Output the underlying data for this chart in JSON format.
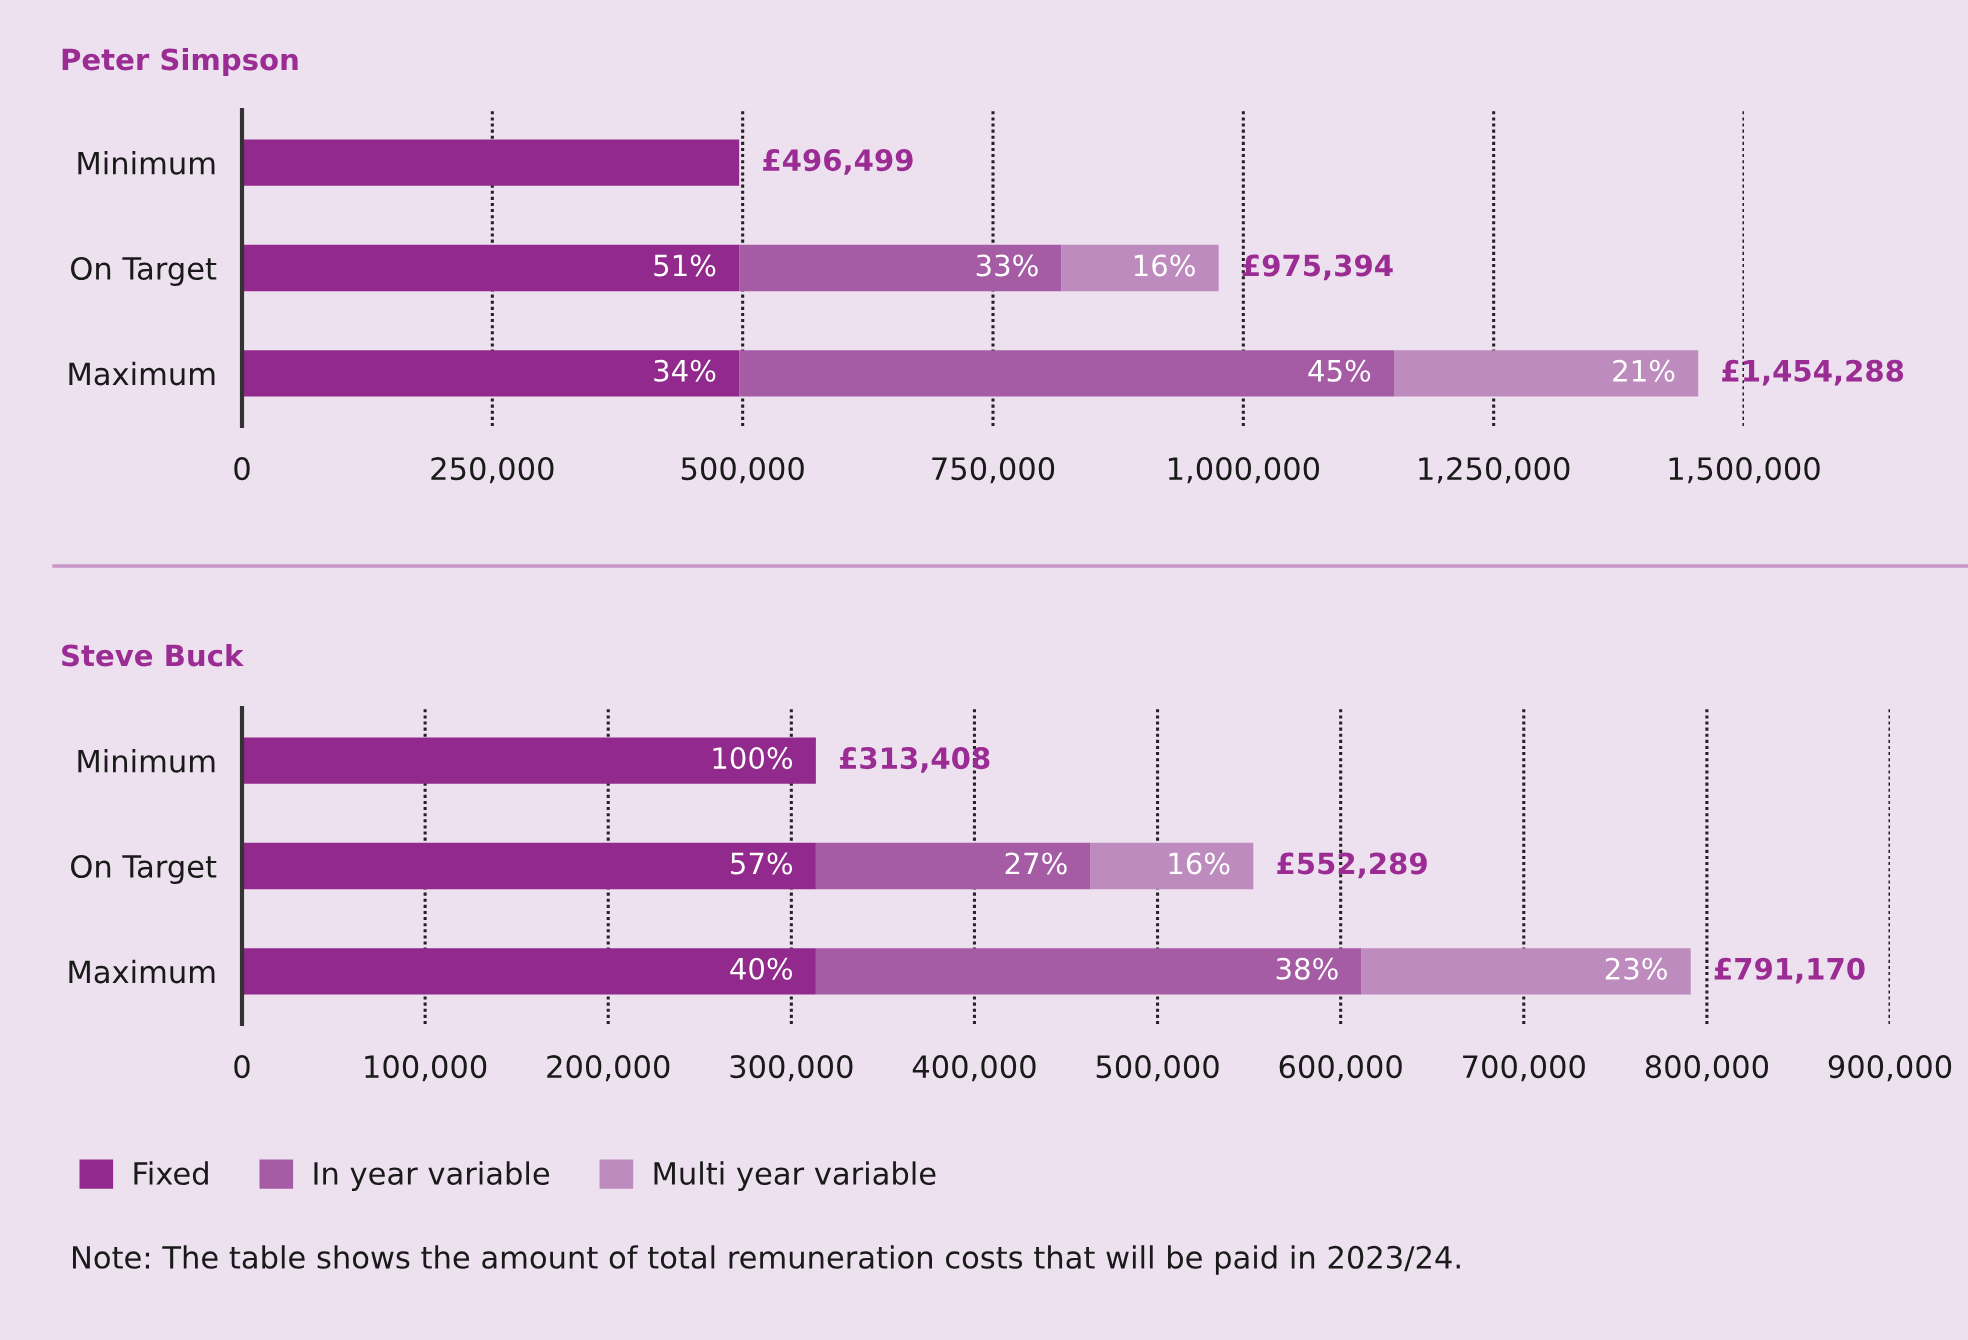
{
  "chart_data": [
    {
      "type": "bar",
      "orientation": "horizontal",
      "stacked": true,
      "title": "Peter Simpson",
      "categories": [
        "Minimum",
        "On Target",
        "Maximum"
      ],
      "series": [
        {
          "color": "#92298c",
          "values": [
            496499,
            496499,
            496499
          ]
        },
        {
          "color": "#a55ca5",
          "values": [
            null,
            322000,
            654000
          ]
        },
        {
          "color": "#bd8bbd",
          "values": [
            null,
            156895,
            303789
          ]
        }
      ],
      "totals": [
        "£496,499",
        "£975,394",
        "£1,454,288"
      ],
      "annotations": [
        {
          "text": "51%",
          "x": 496499,
          "y": "On Target"
        },
        {
          "text": "33%",
          "x": 818499,
          "y": "On Target"
        },
        {
          "text": "16%",
          "x": 975394,
          "y": "On Target"
        },
        {
          "text": "34%",
          "x": 496499,
          "y": "Maximum"
        },
        {
          "text": "45%",
          "x": 1150499,
          "y": "Maximum"
        },
        {
          "text": "21%",
          "x": 1454288,
          "y": "Maximum"
        }
      ],
      "xlim": [
        0,
        1500000
      ],
      "xticks": [
        0,
        {
          "value": 250000,
          "label": "250,000"
        },
        {
          "value": 500000,
          "label": "500,000"
        },
        {
          "value": 750000,
          "label": "750,000"
        },
        {
          "value": 1000000,
          "label": "1,000,000"
        },
        {
          "value": 1250000,
          "label": "1,250,000"
        },
        {
          "value": 1500000,
          "label": "1,500,000"
        }
      ],
      "grid": "x"
    },
    {
      "type": "bar",
      "orientation": "horizontal",
      "stacked": true,
      "title": "Steve Buck",
      "categories": [
        "Minimum",
        "On Target",
        "Maximum"
      ],
      "series": [
        {
          "name": "Fixed",
          "color": "#92298c",
          "values": [
            313408,
            313408,
            313408
          ]
        },
        {
          "name": "In year variable",
          "color": "#a55ca5",
          "values": [
            null,
            150000,
            298000
          ]
        },
        {
          "name": "Multi year variable",
          "color": "#bd8bbd",
          "values": [
            null,
            88881,
            179762
          ]
        }
      ],
      "totals": [
        "£313,408",
        "£552,289",
        "£791,170"
      ],
      "annotations": [
        {
          "text": "100%",
          "x": 313408,
          "y": "Minimum"
        },
        {
          "text": "57%",
          "x": 313408,
          "y": "On Target"
        },
        {
          "text": "27%",
          "x": 463408,
          "y": "On Target"
        },
        {
          "text": "16%",
          "x": 552289,
          "y": "On Target"
        },
        {
          "text": "40%",
          "x": 313408,
          "y": "Maximum"
        },
        {
          "text": "38%",
          "x": 611408,
          "y": "Maximum"
        },
        {
          "text": "23%",
          "x": 791170,
          "y": "Maximum"
        },
        "Note: The table shows the amount of total remuneration costs that will be paid in 2023/24."
      ],
      "xlim": [
        0,
        900000
      ],
      "xticks": [
        0,
        {
          "value": 100000,
          "label": "100,000"
        },
        {
          "value": 200000,
          "label": "200,000"
        },
        {
          "value": 300000,
          "label": "300,000"
        },
        {
          "value": 400000,
          "label": "400,000"
        },
        {
          "value": 500000,
          "label": "500,000"
        },
        {
          "value": 600000,
          "label": "600,000"
        },
        {
          "value": 700000,
          "label": "700,000"
        },
        {
          "value": 800000,
          "label": "800,000"
        },
        {
          "value": 900000,
          "label": "900,000"
        }
      ],
      "grid": "x",
      "legend": "bottom"
    }
  ]
}
